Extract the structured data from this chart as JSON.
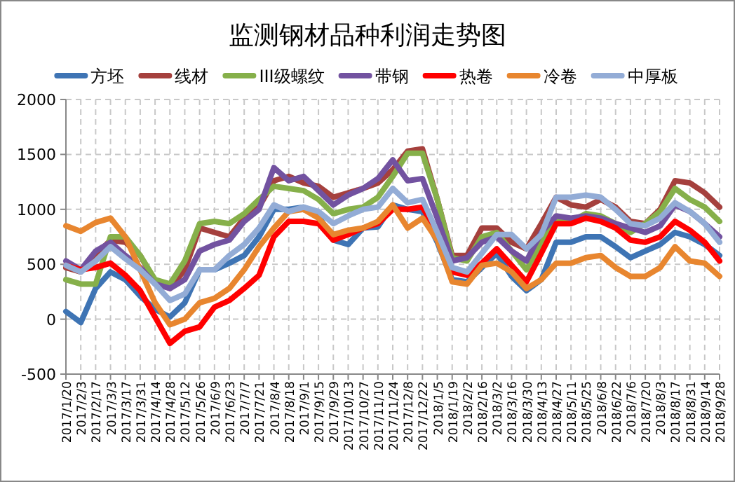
{
  "chart_data": {
    "type": "line",
    "title": "监测钢材品种利润走势图",
    "x": [
      "2017-01-20",
      "2017-02-03",
      "2017-02-17",
      "2017-03-03",
      "2017-03-17",
      "2017-03-31",
      "2017-04-14",
      "2017-04-28",
      "2017-05-12",
      "2017-05-26",
      "2017-06-09",
      "2017-06-23",
      "2017-07-07",
      "2017-07-21",
      "2017-08-04",
      "2017-08-18",
      "2017-09-01",
      "2017-09-15",
      "2017-09-29",
      "2017-10-13",
      "2017-10-27",
      "2017-11-10",
      "2017-11-24",
      "2017-12-08",
      "2017-12-22",
      "2018-01-05",
      "2018-01-19",
      "2018-02-02",
      "2018-02-16",
      "2018-03-02",
      "2018-03-16",
      "2018-03-30",
      "2018-04-13",
      "2018-04-27",
      "2018-05-11",
      "2018-05-25",
      "2018-06-08",
      "2018-06-22",
      "2018-07-06",
      "2018-07-20",
      "2018-08-03",
      "2018-08-17",
      "2018-08-31",
      "2018-09-14",
      "2018-09-28"
    ],
    "series": [
      {
        "name": "方坯",
        "color": "#3e74b4",
        "values": [
          70,
          -30,
          280,
          430,
          360,
          210,
          90,
          20,
          150,
          450,
          450,
          510,
          580,
          750,
          1000,
          1000,
          1020,
          940,
          720,
          680,
          830,
          840,
          1040,
          1000,
          980,
          700,
          360,
          340,
          470,
          600,
          390,
          260,
          360,
          700,
          700,
          750,
          750,
          660,
          560,
          620,
          680,
          790,
          750,
          680,
          580
        ]
      },
      {
        "name": "线材",
        "color": "#a5403d",
        "values": [
          470,
          430,
          580,
          720,
          700,
          580,
          340,
          280,
          450,
          830,
          790,
          750,
          920,
          1020,
          1260,
          1300,
          1240,
          1210,
          1110,
          1150,
          1190,
          1240,
          1360,
          1530,
          1550,
          1090,
          580,
          580,
          830,
          830,
          700,
          640,
          870,
          1110,
          1040,
          1020,
          1090,
          1020,
          890,
          870,
          1000,
          1260,
          1240,
          1150,
          1020
        ]
      },
      {
        "name": "III级螺纹",
        "color": "#86b04a",
        "values": [
          360,
          320,
          320,
          750,
          750,
          580,
          360,
          320,
          530,
          870,
          890,
          870,
          960,
          1090,
          1210,
          1190,
          1170,
          1090,
          960,
          1000,
          1020,
          1110,
          1300,
          1510,
          1510,
          1090,
          560,
          530,
          750,
          790,
          620,
          450,
          700,
          920,
          890,
          960,
          940,
          870,
          790,
          870,
          980,
          1190,
          1090,
          1020,
          890
        ]
      },
      {
        "name": "带钢",
        "color": "#7252a0",
        "values": [
          530,
          450,
          620,
          700,
          580,
          470,
          320,
          280,
          360,
          620,
          680,
          720,
          890,
          1000,
          1380,
          1260,
          1300,
          1170,
          1040,
          1130,
          1190,
          1280,
          1450,
          1260,
          1280,
          920,
          530,
          560,
          700,
          750,
          620,
          530,
          790,
          940,
          920,
          940,
          920,
          870,
          830,
          790,
          850,
          1040,
          980,
          870,
          750
        ]
      },
      {
        "name": "热卷",
        "color": "#ff0000",
        "values": [
          490,
          450,
          470,
          510,
          400,
          260,
          20,
          -220,
          -110,
          -70,
          110,
          170,
          280,
          400,
          750,
          890,
          890,
          870,
          720,
          770,
          830,
          870,
          1000,
          1000,
          1020,
          790,
          430,
          400,
          510,
          640,
          490,
          340,
          600,
          870,
          870,
          920,
          890,
          830,
          720,
          700,
          750,
          890,
          810,
          700,
          530
        ]
      },
      {
        "name": "冷卷",
        "color": "#e8862f",
        "values": [
          850,
          800,
          880,
          920,
          750,
          450,
          150,
          -50,
          0,
          150,
          190,
          280,
          450,
          660,
          830,
          980,
          1000,
          920,
          770,
          810,
          830,
          890,
          1040,
          830,
          920,
          720,
          340,
          320,
          490,
          510,
          430,
          280,
          360,
          510,
          510,
          560,
          580,
          470,
          390,
          390,
          470,
          660,
          530,
          510,
          390
        ]
      },
      {
        "name": "中厚板",
        "color": "#93acd6",
        "values": [
          490,
          430,
          530,
          660,
          550,
          450,
          320,
          170,
          230,
          450,
          450,
          580,
          680,
          830,
          1040,
          980,
          1020,
          980,
          870,
          940,
          1000,
          1020,
          1190,
          1060,
          1090,
          790,
          470,
          430,
          600,
          770,
          770,
          640,
          770,
          1110,
          1110,
          1130,
          1110,
          1000,
          870,
          850,
          920,
          1060,
          980,
          870,
          700
        ]
      }
    ],
    "xlim": [
      "2017-01-20",
      "2018-09-28"
    ],
    "xticks": [
      {
        "value": "2017-01-20",
        "label": "2017/1/20"
      },
      {
        "value": "2017-02-03",
        "label": "2017/2/3"
      },
      {
        "value": "2017-02-17",
        "label": "2017/2/17"
      },
      {
        "value": "2017-03-03",
        "label": "2017/3/3"
      },
      {
        "value": "2017-03-17",
        "label": "2017/3/17"
      },
      {
        "value": "2017-03-31",
        "label": "2017/3/31"
      },
      {
        "value": "2017-04-14",
        "label": "2017/4/14"
      },
      {
        "value": "2017-04-28",
        "label": "2017/4/28"
      },
      {
        "value": "2017-05-12",
        "label": "2017/5/12"
      },
      {
        "value": "2017-05-26",
        "label": "2017/5/26"
      },
      {
        "value": "2017-06-09",
        "label": "2017/6/9"
      },
      {
        "value": "2017-06-23",
        "label": "2017/6/23"
      },
      {
        "value": "2017-07-07",
        "label": "2017/7/7"
      },
      {
        "value": "2017-07-21",
        "label": "2017/7/21"
      },
      {
        "value": "2017-08-04",
        "label": "2017/8/4"
      },
      {
        "value": "2017-08-18",
        "label": "2017/8/18"
      },
      {
        "value": "2017-09-01",
        "label": "2017/9/1"
      },
      {
        "value": "2017-09-15",
        "label": "2017/9/15"
      },
      {
        "value": "2017-09-29",
        "label": "2017/9/29"
      },
      {
        "value": "2017-10-13",
        "label": "2017/10/13"
      },
      {
        "value": "2017-10-27",
        "label": "2017/10/27"
      },
      {
        "value": "2017-11-10",
        "label": "2017/11/10"
      },
      {
        "value": "2017-11-24",
        "label": "2017/11/24"
      },
      {
        "value": "2017-12-08",
        "label": "2017/12/8"
      },
      {
        "value": "2017-12-22",
        "label": "2017/12/22"
      },
      {
        "value": "2018-01-05",
        "label": "2018/1/5"
      },
      {
        "value": "2018-01-19",
        "label": "2018/1/19"
      },
      {
        "value": "2018-02-02",
        "label": "2018/2/2"
      },
      {
        "value": "2018-02-16",
        "label": "2018/2/16"
      },
      {
        "value": "2018-03-02",
        "label": "2018/3/2"
      },
      {
        "value": "2018-03-16",
        "label": "2018/3/16"
      },
      {
        "value": "2018-03-30",
        "label": "2018/3/30"
      },
      {
        "value": "2018-04-13",
        "label": "2018/4/13"
      },
      {
        "value": "2018-04-27",
        "label": "2018/4/27"
      },
      {
        "value": "2018-05-11",
        "label": "2018/5/11"
      },
      {
        "value": "2018-05-25",
        "label": "2018/5/25"
      },
      {
        "value": "2018-06-08",
        "label": "2018/6/8"
      },
      {
        "value": "2018-06-22",
        "label": "2018/6/22"
      },
      {
        "value": "2018-07-06",
        "label": "2018/7/6"
      },
      {
        "value": "2018-07-20",
        "label": "2018/7/20"
      },
      {
        "value": "2018-08-03",
        "label": "2018/8/3"
      },
      {
        "value": "2018-08-17",
        "label": "2018/8/17"
      },
      {
        "value": "2018-08-31",
        "label": "2018/8/31"
      },
      {
        "value": "2018-09-14",
        "label": "2018/9/14"
      },
      {
        "value": "2018-09-28",
        "label": "2018/9/28"
      }
    ],
    "ylim": [
      -500,
      2000
    ],
    "yticks": [
      -500,
      0,
      500,
      1000,
      1500,
      2000
    ],
    "grid": true,
    "legend": "top",
    "line_style": "solid"
  }
}
